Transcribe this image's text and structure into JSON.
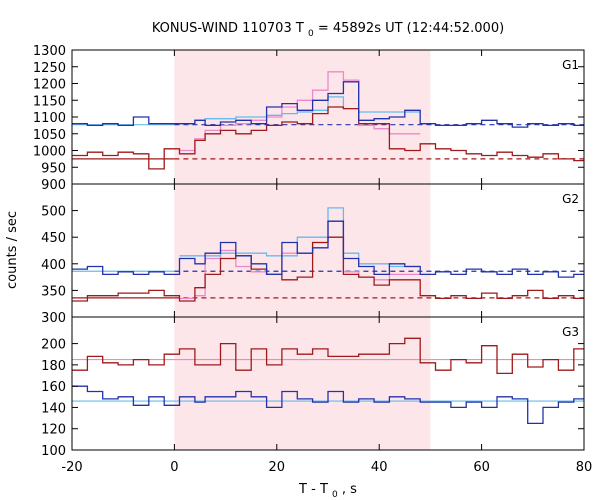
{
  "title_prefix": "KONUS-WIND 110703 T",
  "title_sub": "0",
  "title_suffix": " = 45892s UT (12:44:52.000)",
  "ylabel": "counts / sec",
  "xlabel_prefix": "T - T",
  "xlabel_sub": "0",
  "xlabel_suffix": ", s",
  "colors": {
    "darkred": "#a01a1a",
    "blue": "#2233aa",
    "pink": "#ee88cc",
    "lightblue": "#66bbee",
    "shade": "#fde6ea"
  },
  "chart_data": {
    "type": "line",
    "step_style": "histogram",
    "x_range": [
      -20,
      80
    ],
    "x_ticks": [
      -20,
      0,
      20,
      40,
      60,
      80
    ],
    "x_tick_labels": [
      "-20",
      "0",
      "20",
      "40",
      "60",
      "80"
    ],
    "shaded_interval": [
      0,
      50
    ],
    "grid": false,
    "panels": [
      {
        "label": "G1",
        "y_range": [
          900,
          1300
        ],
        "y_ticks": [
          900,
          950,
          1000,
          1050,
          1100,
          1150,
          1200,
          1250,
          1300
        ],
        "y_tick_labels": [
          "900",
          "950",
          "1000",
          "1050",
          "1100",
          "1150",
          "1200",
          "1250",
          "1300"
        ],
        "bin_edges": [
          -20,
          -17,
          -14,
          -11,
          -8,
          -5,
          -2,
          1,
          4,
          6,
          9,
          12,
          15,
          18,
          21,
          24,
          27,
          30,
          33,
          36,
          39,
          42,
          45,
          48,
          51,
          54,
          57,
          60,
          63,
          66,
          69,
          72,
          75,
          78,
          80
        ],
        "series": [
          {
            "color": "darkred",
            "values": [
              985,
              995,
              985,
              995,
              990,
              945,
              1005,
              990,
              1030,
              1050,
              1060,
              1050,
              1060,
              1075,
              1085,
              1080,
              1110,
              1130,
              1125,
              1080,
              1080,
              1005,
              1000,
              1020,
              1005,
              1000,
              990,
              985,
              995,
              985,
              980,
              990,
              975,
              970
            ]
          },
          {
            "color": "blue",
            "values": [
              1080,
              1075,
              1080,
              1075,
              1100,
              1080,
              1080,
              1080,
              1090,
              1075,
              1085,
              1090,
              1080,
              1130,
              1140,
              1120,
              1150,
              1170,
              1205,
              1090,
              1095,
              1100,
              1120,
              1080,
              1075,
              1075,
              1080,
              1090,
              1080,
              1070,
              1080,
              1075,
              1080,
              1075
            ]
          },
          {
            "color": "pink",
            "values": [
              null,
              null,
              null,
              null,
              null,
              null,
              null,
              1000,
              1035,
              1060,
              1075,
              1080,
              1090,
              1100,
              1130,
              1150,
              1180,
              1235,
              1210,
              1075,
              1065,
              1050,
              1050,
              null,
              null,
              null,
              null,
              null,
              null,
              null,
              null,
              null,
              null,
              null
            ]
          },
          {
            "color": "lightblue",
            "values": [
              null,
              null,
              null,
              null,
              null,
              null,
              null,
              1080,
              1090,
              1095,
              1095,
              1100,
              1100,
              1105,
              1110,
              1115,
              1120,
              1160,
              1125,
              1115,
              1115,
              1115,
              1115,
              null,
              null,
              null,
              null,
              null,
              null,
              null,
              null,
              null,
              null,
              null
            ]
          }
        ],
        "reference_lines": [
          {
            "color": "darkred",
            "style": "solid",
            "x": [
              -20,
              0
            ],
            "y": 975
          },
          {
            "color": "darkred",
            "style": "dashed",
            "x": [
              0,
              80
            ],
            "y": 975
          },
          {
            "color": "blue",
            "style": "dashed",
            "x": [
              0,
              80
            ],
            "y": 1077
          },
          {
            "color": "lightblue",
            "style": "solid",
            "x": [
              -20,
              0
            ],
            "y": 1077
          }
        ]
      },
      {
        "label": "G2",
        "y_range": [
          300,
          550
        ],
        "y_ticks": [
          300,
          350,
          400,
          450,
          500
        ],
        "y_tick_labels": [
          "300",
          "350",
          "400",
          "450",
          "500"
        ],
        "bin_edges": [
          -20,
          -17,
          -14,
          -11,
          -8,
          -5,
          -2,
          1,
          4,
          6,
          9,
          12,
          15,
          18,
          21,
          24,
          27,
          30,
          33,
          36,
          39,
          42,
          45,
          48,
          51,
          54,
          57,
          60,
          63,
          66,
          69,
          72,
          75,
          78,
          80
        ],
        "series": [
          {
            "color": "darkred",
            "values": [
              330,
              340,
              340,
              345,
              345,
              350,
              340,
              330,
              355,
              380,
              410,
              415,
              390,
              380,
              370,
              375,
              440,
              450,
              380,
              375,
              360,
              370,
              370,
              340,
              335,
              340,
              335,
              345,
              335,
              340,
              350,
              335,
              340,
              335
            ]
          },
          {
            "color": "blue",
            "values": [
              390,
              395,
              380,
              385,
              380,
              385,
              380,
              410,
              400,
              420,
              440,
              415,
              400,
              380,
              440,
              420,
              430,
              480,
              410,
              395,
              380,
              400,
              395,
              380,
              385,
              380,
              390,
              385,
              380,
              390,
              380,
              385,
              375,
              380
            ]
          },
          {
            "color": "pink",
            "values": [
              null,
              null,
              null,
              null,
              null,
              null,
              null,
              335,
              340,
              410,
              425,
              395,
              385,
              380,
              420,
              420,
              440,
              480,
              385,
              375,
              370,
              380,
              380,
              null,
              null,
              null,
              null,
              null,
              null,
              null,
              null,
              null,
              null,
              null
            ]
          },
          {
            "color": "lightblue",
            "values": [
              null,
              null,
              null,
              null,
              null,
              null,
              null,
              415,
              415,
              415,
              420,
              420,
              420,
              415,
              415,
              450,
              450,
              505,
              420,
              400,
              400,
              395,
              395,
              null,
              null,
              null,
              null,
              null,
              null,
              null,
              null,
              null,
              null,
              null
            ]
          }
        ],
        "reference_lines": [
          {
            "color": "darkred",
            "style": "solid",
            "x": [
              -20,
              0
            ],
            "y": 336
          },
          {
            "color": "darkred",
            "style": "dashed",
            "x": [
              0,
              80
            ],
            "y": 336
          },
          {
            "color": "blue",
            "style": "dashed",
            "x": [
              0,
              80
            ],
            "y": 386
          },
          {
            "color": "lightblue",
            "style": "solid",
            "x": [
              -20,
              0
            ],
            "y": 386
          }
        ]
      },
      {
        "label": "G3",
        "y_range": [
          100,
          225
        ],
        "y_ticks": [
          100,
          120,
          140,
          160,
          180,
          200
        ],
        "y_tick_labels": [
          "100",
          "120",
          "140",
          "160",
          "180",
          "200"
        ],
        "bin_edges": [
          -20,
          -17,
          -14,
          -11,
          -8,
          -5,
          -2,
          1,
          4,
          6,
          9,
          12,
          15,
          18,
          21,
          24,
          27,
          30,
          33,
          36,
          39,
          42,
          45,
          48,
          51,
          54,
          57,
          60,
          63,
          66,
          69,
          72,
          75,
          78,
          80
        ],
        "series": [
          {
            "color": "darkred",
            "values": [
              175,
              188,
              182,
              180,
              185,
              180,
              190,
              195,
              180,
              180,
              200,
              175,
              195,
              180,
              195,
              190,
              195,
              188,
              188,
              190,
              190,
              200,
              205,
              182,
              175,
              185,
              182,
              198,
              172,
              190,
              178,
              185,
              175,
              195
            ]
          },
          {
            "color": "blue",
            "values": [
              160,
              155,
              148,
              150,
              142,
              150,
              142,
              150,
              145,
              150,
              150,
              155,
              150,
              140,
              155,
              148,
              145,
              155,
              145,
              148,
              145,
              150,
              148,
              145,
              145,
              140,
              145,
              140,
              150,
              148,
              125,
              140,
              145,
              148
            ]
          },
          {
            "color": "pink",
            "values": [
              null,
              null,
              null,
              null,
              null,
              null,
              null,
              null,
              null,
              null,
              null,
              null,
              null,
              null,
              null,
              null,
              null,
              null,
              null,
              null,
              null,
              null,
              null,
              null,
              null,
              null,
              null,
              null,
              null,
              null,
              null,
              null,
              null,
              null
            ]
          },
          {
            "color": "lightblue",
            "values": [
              null,
              null,
              null,
              null,
              null,
              null,
              null,
              null,
              null,
              null,
              null,
              null,
              null,
              null,
              null,
              null,
              null,
              null,
              null,
              null,
              null,
              null,
              null,
              null,
              null,
              null,
              null,
              null,
              null,
              null,
              null,
              null,
              null,
              null
            ]
          }
        ],
        "reference_lines": [
          {
            "color": "pink",
            "style": "solid",
            "x": [
              -20,
              80
            ],
            "y": 185
          },
          {
            "color": "lightblue",
            "style": "solid",
            "x": [
              -20,
              80
            ],
            "y": 146
          }
        ]
      }
    ]
  }
}
